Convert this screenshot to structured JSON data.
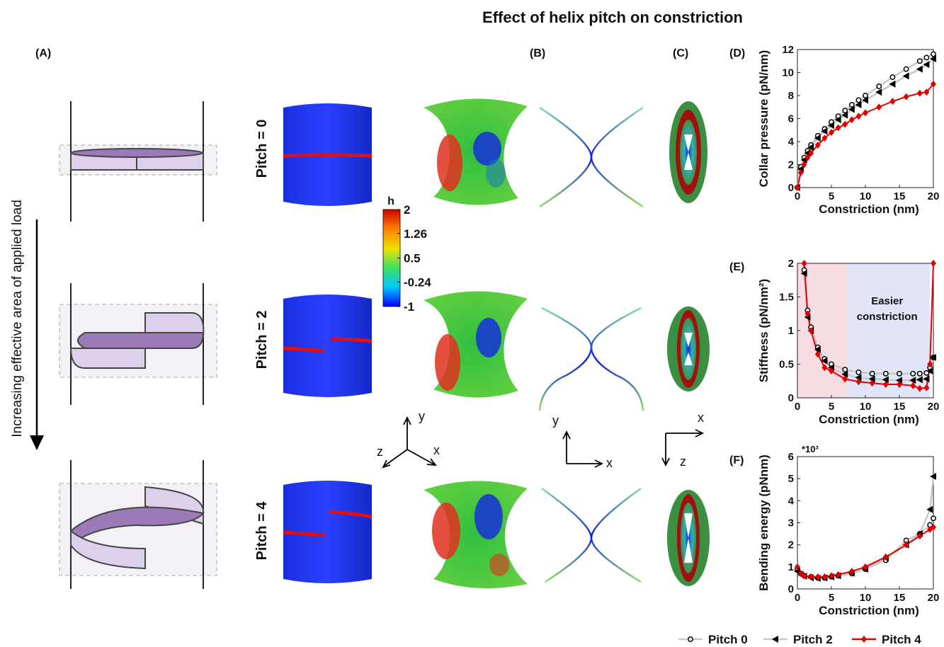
{
  "title": "Effect of helix pitch on constriction",
  "panel_labels": [
    "(A)",
    "(B)",
    "(C)"
  ],
  "load_label": "Increasing effective area of applied load",
  "pitch_labels": [
    "Pitch = 0",
    "Pitch = 2",
    "Pitch = 4"
  ],
  "axes_labels": [
    [
      "y",
      "z",
      "x"
    ],
    [
      "y",
      "x"
    ],
    [
      "x",
      "z"
    ]
  ],
  "colorbar": {
    "label": "h",
    "clim": [
      -1,
      2
    ],
    "ticks": [
      2,
      1.26,
      0.5,
      -0.24,
      -1
    ],
    "colors": [
      "#0000ff",
      "#00c8ff",
      "#40e060",
      "#f0e000",
      "#ff8000",
      "#d00000"
    ]
  },
  "legend": [
    {
      "name": "Pitch 0",
      "line_color": "#c8c8c8",
      "marker": "circle",
      "marker_color": "#000000"
    },
    {
      "name": "Pitch 2",
      "line_color": "#c8c8c8",
      "marker": "triangle",
      "marker_color": "#000000"
    },
    {
      "name": "Pitch 4",
      "line_color": "#e00000",
      "marker": "diamond",
      "marker_color": "#e00000"
    }
  ],
  "chart_data": [
    {
      "type": "line",
      "panel_label": "(D)",
      "xlabel": "Constriction (nm)",
      "ylabel": "Collar pressure (pN/nm)",
      "xlim": [
        0,
        20
      ],
      "ylim": [
        0,
        12
      ],
      "xticks": [
        0,
        5,
        10,
        15,
        20
      ],
      "yticks": [
        0,
        2,
        4,
        6,
        8,
        10,
        12
      ],
      "x": [
        0,
        0.5,
        1,
        1.5,
        2,
        3,
        4,
        5,
        6,
        7,
        8,
        9,
        10,
        12,
        14,
        16,
        18,
        19,
        20
      ],
      "series": [
        {
          "values": [
            0,
            1.8,
            2.6,
            3.2,
            3.7,
            4.5,
            5.1,
            5.7,
            6.2,
            6.7,
            7.2,
            7.6,
            8.0,
            8.8,
            9.6,
            10.3,
            11.0,
            11.3,
            11.6
          ]
        },
        {
          "values": [
            0,
            1.6,
            2.4,
            3.0,
            3.5,
            4.3,
            4.9,
            5.4,
            5.9,
            6.3,
            6.8,
            7.2,
            7.6,
            8.3,
            9.0,
            9.7,
            10.3,
            10.7,
            11.2
          ]
        },
        {
          "values": [
            0,
            1.3,
            2.0,
            2.6,
            3.0,
            3.7,
            4.3,
            4.8,
            5.2,
            5.5,
            5.9,
            6.2,
            6.5,
            7.0,
            7.5,
            7.9,
            8.2,
            8.3,
            9.0
          ]
        }
      ]
    },
    {
      "type": "line",
      "panel_label": "(E)",
      "xlabel": "Constriction (nm)",
      "ylabel": "Stiffness (pN/nm²)",
      "xlim": [
        0,
        20
      ],
      "ylim": [
        0,
        2
      ],
      "xticks": [
        0,
        5,
        10,
        15,
        20
      ],
      "yticks": [
        0,
        0.5,
        1,
        1.5,
        2
      ],
      "annotation": [
        "Easier",
        "constriction"
      ],
      "shaded_regions": [
        {
          "x": [
            0,
            7.3
          ],
          "color": "#f7dde2"
        },
        {
          "x": [
            7.3,
            19.5
          ],
          "color": "#e2e4f8"
        }
      ],
      "x": [
        1,
        1.5,
        2,
        3,
        4,
        5,
        7,
        9,
        11,
        13,
        15,
        17,
        18,
        19,
        19.5,
        20
      ],
      "series": [
        {
          "values": [
            1.9,
            1.3,
            1.05,
            0.75,
            0.58,
            0.5,
            0.42,
            0.38,
            0.36,
            0.36,
            0.36,
            0.36,
            0.36,
            0.37,
            0.45,
            0.6
          ]
        },
        {
          "values": [
            1.85,
            1.2,
            1.0,
            0.72,
            0.55,
            0.45,
            0.35,
            0.3,
            0.28,
            0.27,
            0.26,
            0.26,
            0.27,
            0.28,
            0.4,
            0.6
          ]
        },
        {
          "values": [
            2,
            1.25,
            1.0,
            0.65,
            0.45,
            0.4,
            0.28,
            0.24,
            0.22,
            0.2,
            0.2,
            0.18,
            0.14,
            0.15,
            0.5,
            2
          ]
        }
      ]
    },
    {
      "type": "line",
      "panel_label": "(F)",
      "xlabel": "Constriction (nm)",
      "ylabel": "Bending energy (pNnm)",
      "scale_label": "*10³",
      "xlim": [
        0,
        20
      ],
      "ylim": [
        0,
        6
      ],
      "xticks": [
        0,
        5,
        10,
        15,
        20
      ],
      "yticks": [
        0,
        1,
        2,
        3,
        4,
        5,
        6
      ],
      "x": [
        0,
        0.5,
        1,
        2,
        3,
        4,
        5,
        6,
        8,
        10,
        13,
        16,
        18,
        19.5,
        20
      ],
      "series": [
        {
          "values": [
            0.9,
            0.7,
            0.6,
            0.55,
            0.5,
            0.5,
            0.55,
            0.6,
            0.7,
            0.9,
            1.3,
            2.2,
            2.5,
            2.9,
            3.2
          ]
        },
        {
          "values": [
            0.8,
            0.65,
            0.58,
            0.5,
            0.48,
            0.5,
            0.55,
            0.6,
            0.72,
            0.9,
            1.4,
            2.0,
            2.5,
            3.6,
            5.1
          ]
        },
        {
          "values": [
            1.0,
            0.7,
            0.6,
            0.55,
            0.55,
            0.55,
            0.6,
            0.65,
            0.8,
            1.0,
            1.45,
            2.0,
            2.4,
            2.7,
            2.8
          ]
        }
      ]
    }
  ]
}
